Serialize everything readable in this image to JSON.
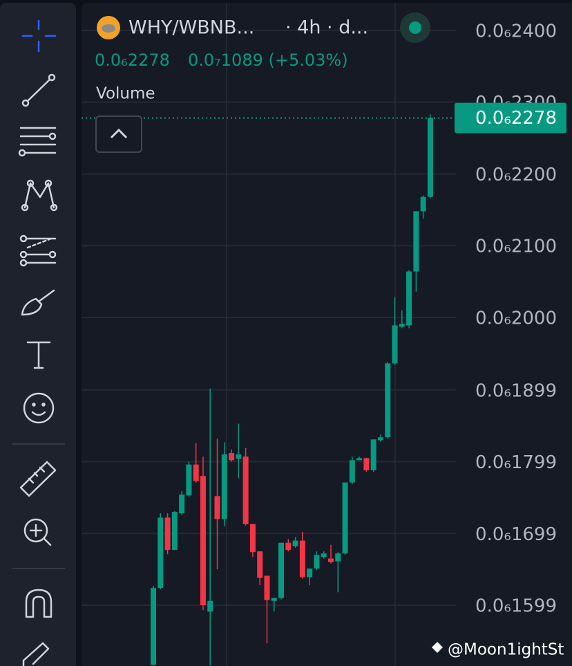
{
  "chart_data": {
    "type": "candlestick",
    "title": "WHY/WBNB...",
    "subtitle": "· 4h · d...",
    "price_text": "0.0₆2278",
    "change_text": "0.0₇1089 (+5.03%)",
    "indicator": "Volume",
    "watermark": "@Moon1ightSt",
    "last_price": {
      "value": 2.278e-07,
      "label": "0.0₆2278"
    },
    "up_color": "#089981",
    "down_color": "#f23645",
    "ylim": [
      1.5142e-07,
      2.4424e-07
    ],
    "yticks": [
      {
        "value": 2.4e-07,
        "label": "0.0₆2400"
      },
      {
        "value": 2.3e-07,
        "label": "0.0₆2300"
      },
      {
        "value": 2.2e-07,
        "label": "0.0₆2200"
      },
      {
        "value": 2.1e-07,
        "label": "0.0₆2100"
      },
      {
        "value": 2e-07,
        "label": "0.0₆2000"
      },
      {
        "value": 1.899e-07,
        "label": "0.0₆1899"
      },
      {
        "value": 1.799e-07,
        "label": "0.0₆1799"
      },
      {
        "value": 1.699e-07,
        "label": "0.0₆1699"
      },
      {
        "value": 1.599e-07,
        "label": "0.0₆1599"
      }
    ],
    "grid": true,
    "open": [
      1.516e-07,
      1.623e-07,
      1.721e-07,
      1.676e-07,
      1.727e-07,
      1.752e-07,
      1.795e-07,
      1.779e-07,
      1.59e-07,
      1.751e-07,
      1.719e-07,
      1.811e-07,
      1.803e-07,
      1.806e-07,
      1.712e-07,
      1.674e-07,
      1.64e-07,
      1.605e-07,
      1.609e-07,
      1.686e-07,
      1.681e-07,
      1.689e-07,
      1.638e-07,
      1.65e-07,
      1.666e-07,
      1.664e-07,
      1.66e-07,
      1.671e-07,
      1.77e-07,
      1.801e-07,
      1.804e-07,
      1.787e-07,
      1.829e-07,
      1.833e-07,
      1.936e-07,
      1.987e-07,
      1.989e-07,
      2.064e-07,
      2.148e-07,
      2.168e-07
    ],
    "high": [
      1.626e-07,
      1.727e-07,
      1.727e-07,
      1.73e-07,
      1.758e-07,
      1.799e-07,
      1.825e-07,
      1.806e-07,
      1.901e-07,
      1.831e-07,
      1.826e-07,
      1.816e-07,
      1.852e-07,
      1.818e-07,
      1.712e-07,
      1.674e-07,
      1.64e-07,
      1.607e-07,
      1.686e-07,
      1.691e-07,
      1.694e-07,
      1.701e-07,
      1.642e-07,
      1.674e-07,
      1.674e-07,
      1.683e-07,
      1.673e-07,
      1.77e-07,
      1.806e-07,
      1.806e-07,
      1.804e-07,
      1.83e-07,
      1.837e-07,
      1.938e-07,
      2.028e-07,
      2.01e-07,
      2.066e-07,
      2.148e-07,
      2.17e-07,
      2.283e-07
    ],
    "low": [
      1.515e-07,
      1.621e-07,
      1.67e-07,
      1.676e-07,
      1.725e-07,
      1.75e-07,
      1.77e-07,
      1.592e-07,
      1.515e-07,
      1.649e-07,
      1.709e-07,
      1.799e-07,
      1.776e-07,
      1.71e-07,
      1.666e-07,
      1.627e-07,
      1.546e-07,
      1.59e-07,
      1.607e-07,
      1.674e-07,
      1.679e-07,
      1.636e-07,
      1.627e-07,
      1.648e-07,
      1.664e-07,
      1.657e-07,
      1.617e-07,
      1.669e-07,
      1.768e-07,
      1.801e-07,
      1.785e-07,
      1.785e-07,
      1.827e-07,
      1.831e-07,
      1.934e-07,
      1.985e-07,
      1.985e-07,
      2.036e-07,
      2.138e-07,
      2.166e-07
    ],
    "close": [
      1.623e-07,
      1.721e-07,
      1.676e-07,
      1.729e-07,
      1.753e-07,
      1.795e-07,
      1.772e-07,
      1.599e-07,
      1.605e-07,
      1.719e-07,
      1.809e-07,
      1.801e-07,
      1.809e-07,
      1.712e-07,
      1.673e-07,
      1.637e-07,
      1.606e-07,
      1.609e-07,
      1.686e-07,
      1.676e-07,
      1.689e-07,
      1.638e-07,
      1.65e-07,
      1.669e-07,
      1.671e-07,
      1.659e-07,
      1.671e-07,
      1.77e-07,
      1.801e-07,
      1.804e-07,
      1.787e-07,
      1.83e-07,
      1.833e-07,
      1.936e-07,
      1.989e-07,
      1.991e-07,
      2.064e-07,
      2.148e-07,
      2.168e-07,
      2.278e-07
    ]
  }
}
